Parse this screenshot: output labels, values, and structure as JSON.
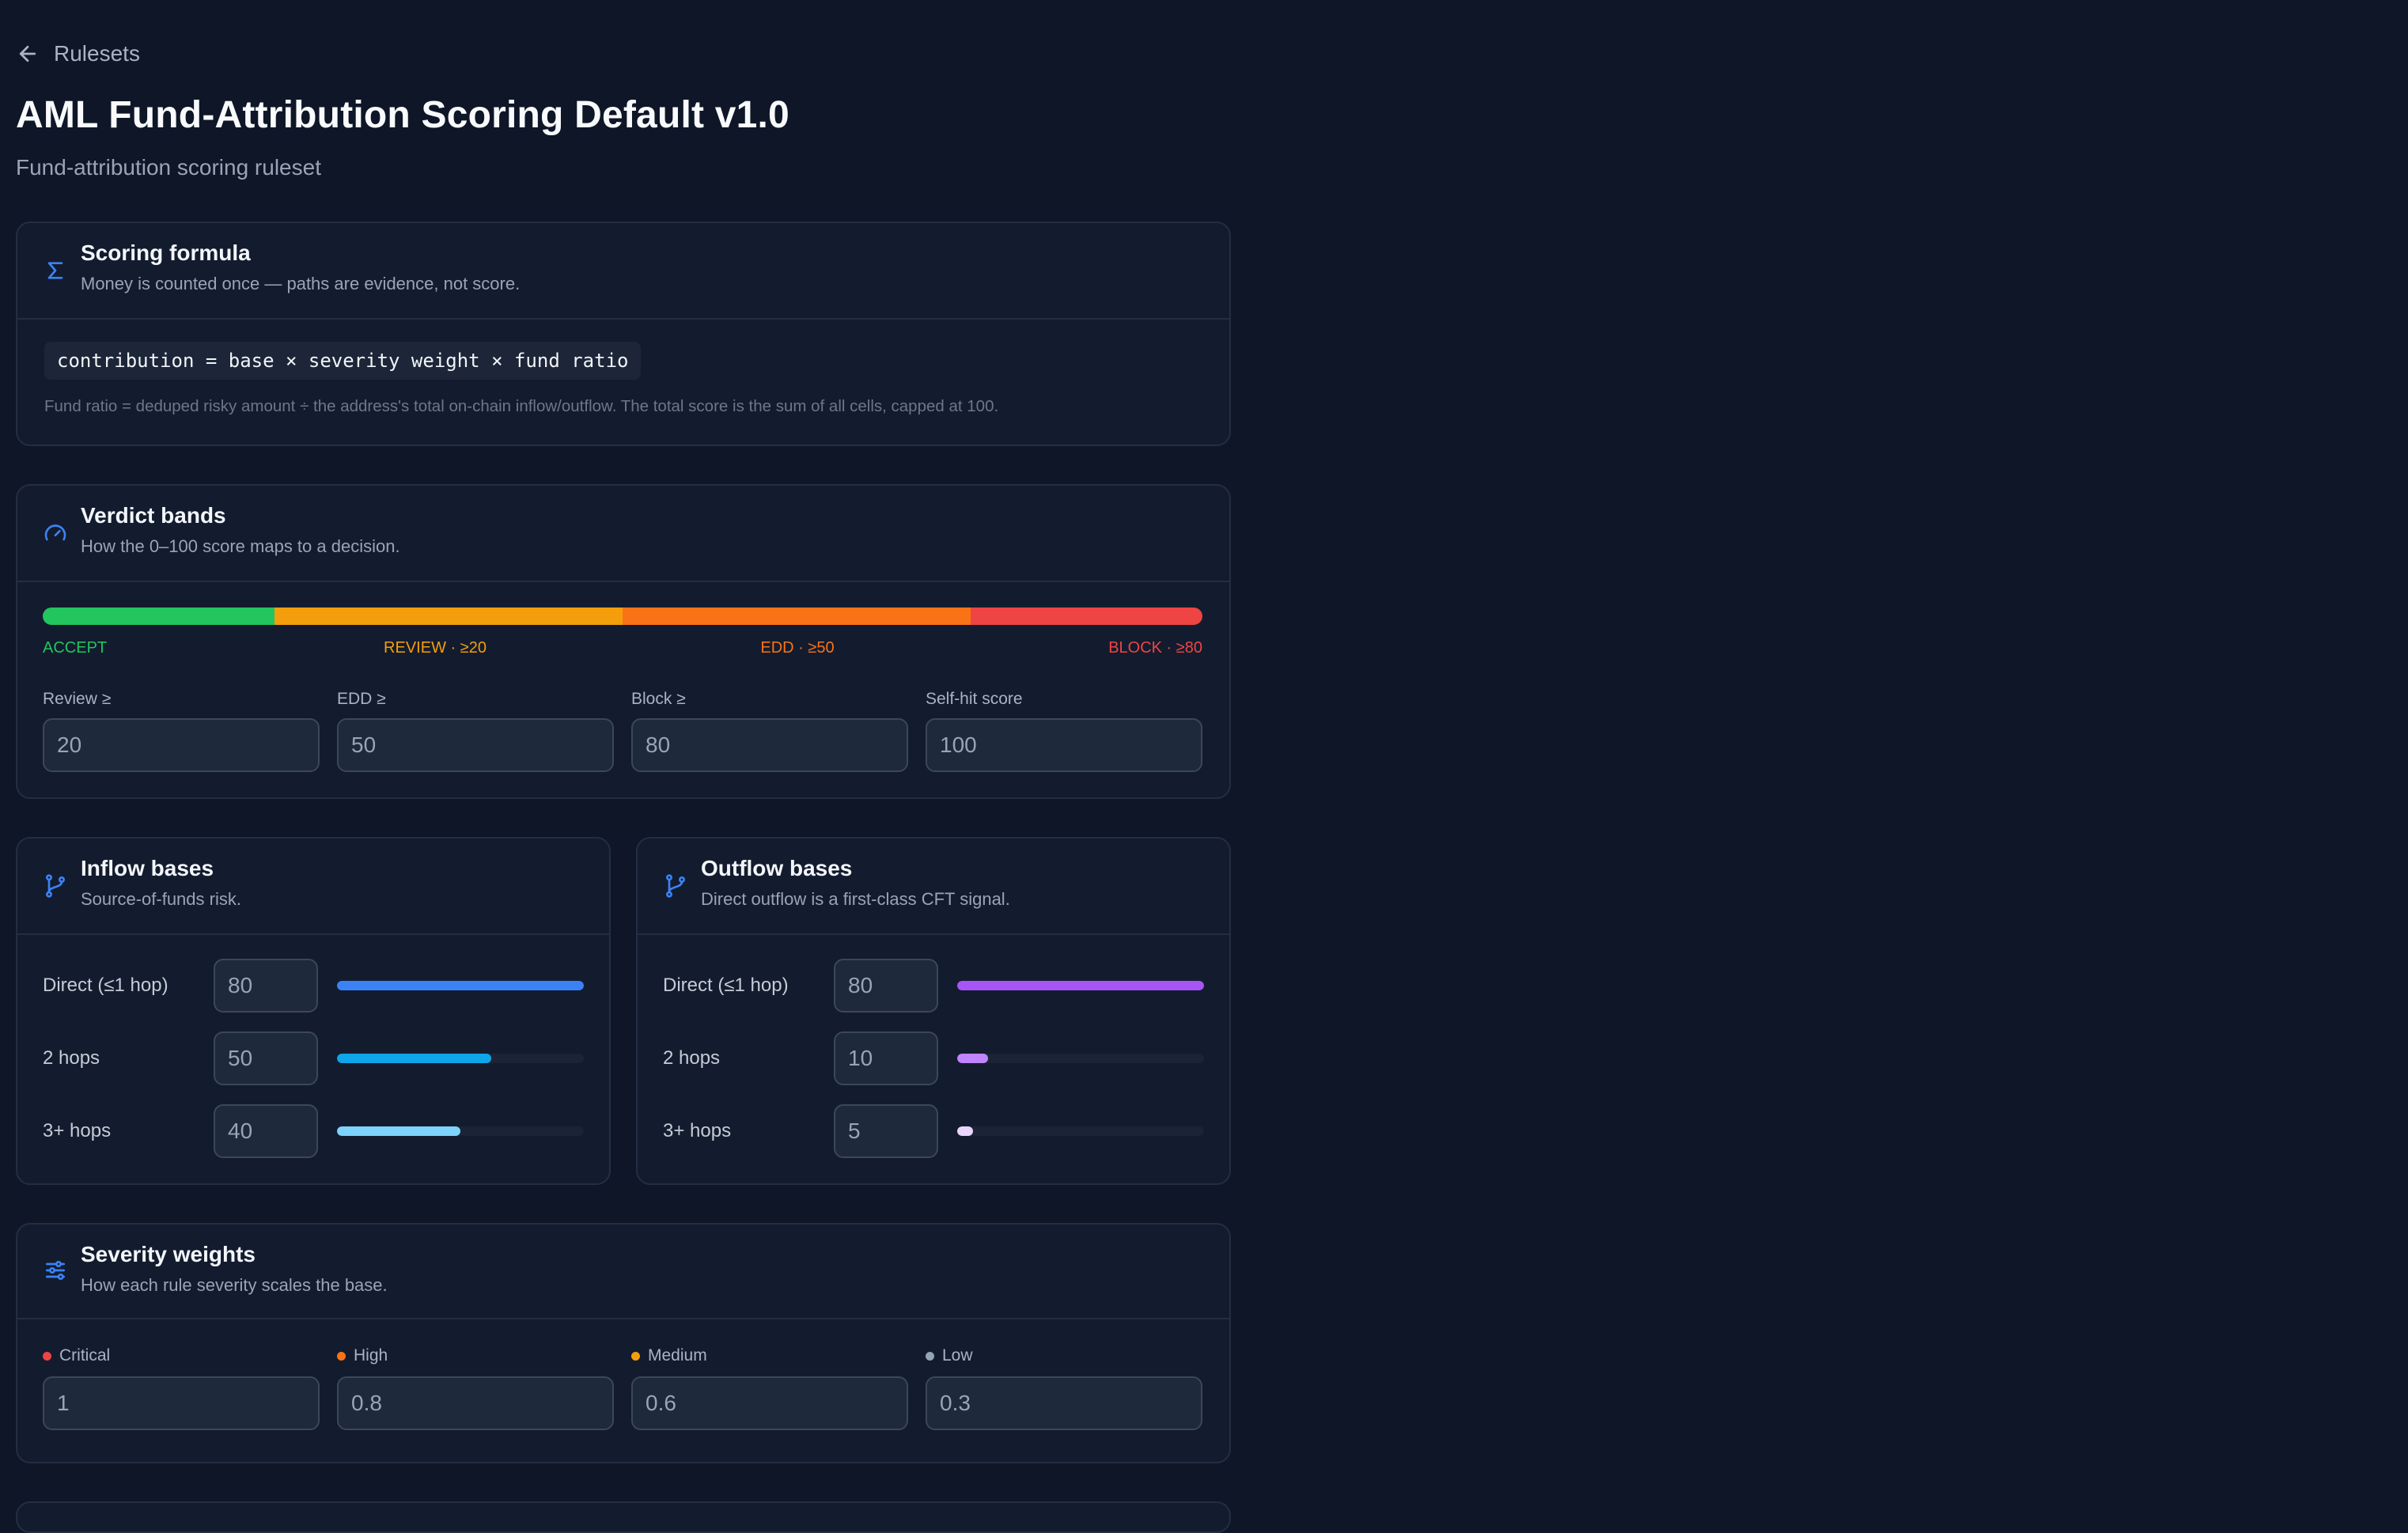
{
  "nav": {
    "back_label": "Rulesets"
  },
  "header": {
    "title": "AML Fund-Attribution Scoring Default v1.0",
    "subtitle": "Fund-attribution scoring ruleset"
  },
  "scoring_formula": {
    "icon": "sigma-icon",
    "title": "Scoring formula",
    "description": "Money is counted once — paths are evidence, not score.",
    "formula": "contribution = base × severity weight × fund ratio",
    "note": "Fund ratio = deduped risky amount ÷ the address's total on-chain inflow/outflow. The total score is the sum of all cells, capped at 100."
  },
  "verdict_bands": {
    "icon": "gauge-icon",
    "title": "Verdict bands",
    "description": "How the 0–100 score maps to a decision.",
    "bands": [
      {
        "label": "ACCEPT",
        "from": 0,
        "to": 20,
        "color": "#22c55e"
      },
      {
        "label": "REVIEW · ≥20",
        "from": 20,
        "to": 50,
        "color": "#f59e0b"
      },
      {
        "label": "EDD · ≥50",
        "from": 50,
        "to": 80,
        "color": "#f97316"
      },
      {
        "label": "BLOCK · ≥80",
        "from": 80,
        "to": 100,
        "color": "#ef4444"
      }
    ],
    "fields": [
      {
        "label": "Review ≥",
        "value": "20"
      },
      {
        "label": "EDD ≥",
        "value": "50"
      },
      {
        "label": "Block ≥",
        "value": "80"
      },
      {
        "label": "Self-hit score",
        "value": "100"
      }
    ]
  },
  "inflow_bases": {
    "icon": "branch-icon",
    "title": "Inflow bases",
    "description": "Source-of-funds risk.",
    "rows": [
      {
        "label": "Direct (≤1 hop)",
        "value": "80",
        "fraction": 1.0,
        "color": "#3b82f6"
      },
      {
        "label": "2 hops",
        "value": "50",
        "fraction": 0.625,
        "color": "#0ea5e9"
      },
      {
        "label": "3+ hops",
        "value": "40",
        "fraction": 0.5,
        "color": "#7dd3fc"
      }
    ]
  },
  "outflow_bases": {
    "icon": "branch-icon",
    "title": "Outflow bases",
    "description": "Direct outflow is a first-class CFT signal.",
    "rows": [
      {
        "label": "Direct (≤1 hop)",
        "value": "80",
        "fraction": 1.0,
        "color": "#a855f7"
      },
      {
        "label": "2 hops",
        "value": "10",
        "fraction": 0.125,
        "color": "#c084fc"
      },
      {
        "label": "3+ hops",
        "value": "5",
        "fraction": 0.0625,
        "color": "#e9d5ff"
      }
    ]
  },
  "severity_weights": {
    "icon": "sliders-icon",
    "title": "Severity weights",
    "description": "How each rule severity scales the base.",
    "fields": [
      {
        "label": "Critical",
        "value": "1",
        "color": "#ef4444"
      },
      {
        "label": "High",
        "value": "0.8",
        "color": "#f97316"
      },
      {
        "label": "Medium",
        "value": "0.6",
        "color": "#f59e0b"
      },
      {
        "label": "Low",
        "value": "0.3",
        "color": "#94a3b8"
      }
    ]
  }
}
